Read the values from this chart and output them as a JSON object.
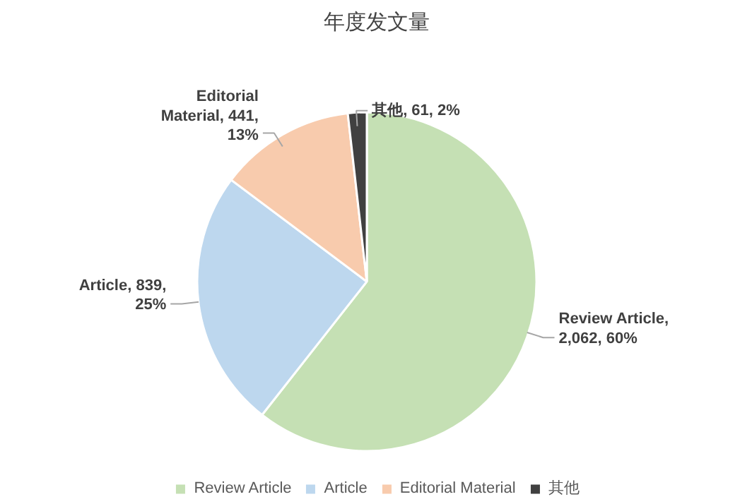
{
  "chart_data": {
    "type": "pie",
    "title": "年度发文量",
    "categories": [
      "Review Article",
      "Article",
      "Editorial Material",
      "其他"
    ],
    "values": [
      2062,
      839,
      441,
      61
    ],
    "colors": [
      "#c5e0b4",
      "#bdd7ee",
      "#f8cbad",
      "#404040"
    ],
    "value_labels": [
      "Review Article,\n2,062, 60%",
      "Article, 839,\n25%",
      "Editorial\nMaterial, 441,\n13%",
      "其他, 61, 2%"
    ],
    "legend": "bottom"
  }
}
